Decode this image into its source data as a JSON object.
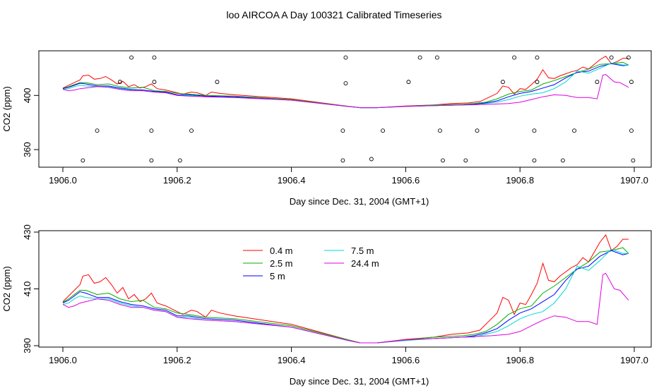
{
  "page_title": "loo AIRCOA A  Day 100321  Calibrated Timeseries",
  "chart_data": [
    {
      "type": "line",
      "panel": "top",
      "xlabel": "Day since Dec. 31, 2004 (GMT+1)",
      "ylabel": "CO2 (ppm)",
      "xlim": [
        1905.99,
        1907.01
      ],
      "ylim": [
        347,
        433
      ],
      "xticks": [
        1906.0,
        1906.2,
        1906.4,
        1906.6,
        1906.8,
        1907.0
      ],
      "xtick_labels": [
        "1906.0",
        "1906.2",
        "1906.4",
        "1906.6",
        "1906.8",
        "1907.0"
      ],
      "yticks": [
        360,
        400
      ],
      "ytick_labels": [
        "360",
        "400"
      ],
      "grid": false,
      "legend": false,
      "outlier_points": [
        [
          1906.035,
          352
        ],
        [
          1906.06,
          374
        ],
        [
          1906.12,
          428
        ],
        [
          1906.16,
          428
        ],
        [
          1906.1,
          410
        ],
        [
          1906.155,
          374
        ],
        [
          1906.155,
          352
        ],
        [
          1906.16,
          410
        ],
        [
          1906.205,
          352
        ],
        [
          1906.225,
          374
        ],
        [
          1906.27,
          410
        ],
        [
          1906.49,
          374
        ],
        [
          1906.49,
          352
        ],
        [
          1906.495,
          428
        ],
        [
          1906.495,
          409
        ],
        [
          1906.54,
          353
        ],
        [
          1906.56,
          374
        ],
        [
          1906.605,
          410
        ],
        [
          1906.625,
          428
        ],
        [
          1906.655,
          428
        ],
        [
          1906.66,
          374
        ],
        [
          1906.665,
          352
        ],
        [
          1906.705,
          352
        ],
        [
          1906.725,
          374
        ],
        [
          1906.77,
          410
        ],
        [
          1906.79,
          428
        ],
        [
          1906.825,
          374
        ],
        [
          1906.825,
          352
        ],
        [
          1906.83,
          410
        ],
        [
          1906.83,
          428
        ],
        [
          1906.875,
          352
        ],
        [
          1906.895,
          374
        ],
        [
          1906.935,
          410
        ],
        [
          1906.96,
          428
        ],
        [
          1906.99,
          428
        ],
        [
          1906.995,
          410
        ],
        [
          1906.995,
          374
        ],
        [
          1906.998,
          352
        ]
      ]
    },
    {
      "type": "line",
      "panel": "bottom",
      "xlabel": "Day since Dec. 31, 2004 (GMT+1)",
      "ylabel": "CO2 (ppm)",
      "xlim": [
        1905.99,
        1907.01
      ],
      "ylim": [
        389.5,
        430.5
      ],
      "xticks": [
        1906.0,
        1906.2,
        1906.4,
        1906.6,
        1906.8,
        1907.0
      ],
      "xtick_labels": [
        "1906.0",
        "1906.2",
        "1906.4",
        "1906.6",
        "1906.8",
        "1907.0"
      ],
      "yticks": [
        390,
        410,
        430
      ],
      "ytick_labels": [
        "390",
        "410",
        "430"
      ],
      "grid": false,
      "legend": "top-left",
      "series": [
        {
          "name": "0.4 m",
          "color": "#ff0000",
          "points": [
            [
              1906.0,
              405.5
            ],
            [
              1906.01,
              407.5
            ],
            [
              1906.02,
              409.5
            ],
            [
              1906.03,
              411.5
            ],
            [
              1906.035,
              414.5
            ],
            [
              1906.045,
              415.0
            ],
            [
              1906.055,
              412.0
            ],
            [
              1906.065,
              412.5
            ],
            [
              1906.075,
              414.0
            ],
            [
              1906.085,
              411.5
            ],
            [
              1906.095,
              408.5
            ],
            [
              1906.105,
              410.5
            ],
            [
              1906.115,
              406.5
            ],
            [
              1906.125,
              408.0
            ],
            [
              1906.135,
              405.5
            ],
            [
              1906.145,
              406.5
            ],
            [
              1906.155,
              408.5
            ],
            [
              1906.165,
              405.0
            ],
            [
              1906.18,
              404.0
            ],
            [
              1906.195,
              402.5
            ],
            [
              1906.21,
              401.0
            ],
            [
              1906.225,
              402.5
            ],
            [
              1906.235,
              402.0
            ],
            [
              1906.25,
              400.0
            ],
            [
              1906.26,
              402.5
            ],
            [
              1906.275,
              401.5
            ],
            [
              1906.3,
              400.5
            ],
            [
              1906.4,
              397.5
            ],
            [
              1906.5,
              392.0
            ],
            [
              1906.52,
              391.0
            ],
            [
              1906.55,
              391.0
            ],
            [
              1906.6,
              392.2
            ],
            [
              1906.65,
              393.0
            ],
            [
              1906.68,
              394.0
            ],
            [
              1906.71,
              394.5
            ],
            [
              1906.73,
              395.5
            ],
            [
              1906.745,
              398.5
            ],
            [
              1906.76,
              401.5
            ],
            [
              1906.77,
              407.0
            ],
            [
              1906.78,
              406.0
            ],
            [
              1906.79,
              401.0
            ],
            [
              1906.8,
              405.0
            ],
            [
              1906.81,
              404.5
            ],
            [
              1906.82,
              408.0
            ],
            [
              1906.83,
              412.0
            ],
            [
              1906.84,
              419.0
            ],
            [
              1906.85,
              413.0
            ],
            [
              1906.86,
              412.5
            ],
            [
              1906.87,
              414.5
            ],
            [
              1906.88,
              416.0
            ],
            [
              1906.89,
              417.5
            ],
            [
              1906.9,
              418.5
            ],
            [
              1906.91,
              421.0
            ],
            [
              1906.92,
              419.5
            ],
            [
              1906.93,
              423.0
            ],
            [
              1906.94,
              426.5
            ],
            [
              1906.95,
              429.0
            ],
            [
              1906.96,
              423.5
            ],
            [
              1906.97,
              425.0
            ],
            [
              1906.98,
              427.5
            ],
            [
              1906.99,
              427.5
            ]
          ]
        },
        {
          "name": "2.5 m",
          "color": "#00b000",
          "points": [
            [
              1906.0,
              405.2
            ],
            [
              1906.01,
              406.5
            ],
            [
              1906.02,
              408.0
            ],
            [
              1906.03,
              409.5
            ],
            [
              1906.04,
              409.5
            ],
            [
              1906.06,
              408.0
            ],
            [
              1906.08,
              408.5
            ],
            [
              1906.1,
              406.5
            ],
            [
              1906.12,
              405.5
            ],
            [
              1906.14,
              406.0
            ],
            [
              1906.16,
              403.5
            ],
            [
              1906.18,
              403.0
            ],
            [
              1906.2,
              401.5
            ],
            [
              1906.22,
              401.0
            ],
            [
              1906.25,
              400.0
            ],
            [
              1906.3,
              399.5
            ],
            [
              1906.4,
              397.0
            ],
            [
              1906.5,
              392.0
            ],
            [
              1906.52,
              391.0
            ],
            [
              1906.55,
              391.0
            ],
            [
              1906.6,
              392.0
            ],
            [
              1906.65,
              393.0
            ],
            [
              1906.7,
              393.5
            ],
            [
              1906.72,
              394.0
            ],
            [
              1906.74,
              395.0
            ],
            [
              1906.76,
              397.5
            ],
            [
              1906.78,
              401.0
            ],
            [
              1906.8,
              403.0
            ],
            [
              1906.82,
              404.0
            ],
            [
              1906.84,
              408.5
            ],
            [
              1906.86,
              411.0
            ],
            [
              1906.88,
              414.0
            ],
            [
              1906.9,
              417.0
            ],
            [
              1906.92,
              419.5
            ],
            [
              1906.94,
              423.0
            ],
            [
              1906.96,
              423.5
            ],
            [
              1906.98,
              424.5
            ],
            [
              1906.99,
              422.5
            ]
          ]
        },
        {
          "name": "5 m",
          "color": "#0000ff",
          "points": [
            [
              1906.0,
              405.0
            ],
            [
              1906.01,
              406.0
            ],
            [
              1906.02,
              407.5
            ],
            [
              1906.03,
              409.0
            ],
            [
              1906.04,
              408.5
            ],
            [
              1906.06,
              407.0
            ],
            [
              1906.08,
              407.0
            ],
            [
              1906.1,
              405.5
            ],
            [
              1906.12,
              404.5
            ],
            [
              1906.14,
              404.0
            ],
            [
              1906.16,
              403.0
            ],
            [
              1906.18,
              402.5
            ],
            [
              1906.2,
              400.5
            ],
            [
              1906.22,
              400.5
            ],
            [
              1906.25,
              399.5
            ],
            [
              1906.3,
              399.0
            ],
            [
              1906.4,
              396.5
            ],
            [
              1906.5,
              391.8
            ],
            [
              1906.52,
              391.0
            ],
            [
              1906.55,
              391.0
            ],
            [
              1906.6,
              392.0
            ],
            [
              1906.65,
              392.5
            ],
            [
              1906.7,
              393.0
            ],
            [
              1906.72,
              393.5
            ],
            [
              1906.74,
              394.5
            ],
            [
              1906.76,
              396.0
            ],
            [
              1906.78,
              399.0
            ],
            [
              1906.8,
              401.5
            ],
            [
              1906.82,
              403.0
            ],
            [
              1906.84,
              405.5
            ],
            [
              1906.86,
              408.0
            ],
            [
              1906.88,
              413.0
            ],
            [
              1906.9,
              417.0
            ],
            [
              1906.92,
              418.0
            ],
            [
              1906.94,
              421.5
            ],
            [
              1906.96,
              423.5
            ],
            [
              1906.98,
              422.0
            ],
            [
              1906.99,
              422.5
            ]
          ]
        },
        {
          "name": "7.5 m",
          "color": "#00d8d8",
          "points": [
            [
              1906.0,
              404.5
            ],
            [
              1906.01,
              405.0
            ],
            [
              1906.02,
              406.5
            ],
            [
              1906.03,
              407.5
            ],
            [
              1906.04,
              407.0
            ],
            [
              1906.06,
              406.5
            ],
            [
              1906.08,
              406.5
            ],
            [
              1906.1,
              405.0
            ],
            [
              1906.12,
              404.0
            ],
            [
              1906.14,
              403.5
            ],
            [
              1906.16,
              402.5
            ],
            [
              1906.18,
              402.0
            ],
            [
              1906.2,
              400.0
            ],
            [
              1906.22,
              400.0
            ],
            [
              1906.25,
              399.0
            ],
            [
              1906.3,
              398.5
            ],
            [
              1906.4,
              396.5
            ],
            [
              1906.5,
              391.8
            ],
            [
              1906.52,
              391.0
            ],
            [
              1906.55,
              391.0
            ],
            [
              1906.6,
              391.8
            ],
            [
              1906.65,
              392.5
            ],
            [
              1906.7,
              393.0
            ],
            [
              1906.72,
              393.0
            ],
            [
              1906.74,
              394.0
            ],
            [
              1906.76,
              395.0
            ],
            [
              1906.78,
              397.0
            ],
            [
              1906.8,
              399.5
            ],
            [
              1906.82,
              401.0
            ],
            [
              1906.84,
              402.0
            ],
            [
              1906.86,
              405.0
            ],
            [
              1906.88,
              410.0
            ],
            [
              1906.9,
              418.0
            ],
            [
              1906.92,
              416.5
            ],
            [
              1906.94,
              420.0
            ],
            [
              1906.96,
              424.0
            ],
            [
              1906.98,
              422.5
            ],
            [
              1906.99,
              422.5
            ]
          ]
        },
        {
          "name": "24.4 m",
          "color": "#e000e0",
          "points": [
            [
              1906.0,
              404.5
            ],
            [
              1906.01,
              403.5
            ],
            [
              1906.02,
              404.0
            ],
            [
              1906.03,
              405.0
            ],
            [
              1906.04,
              405.5
            ],
            [
              1906.06,
              406.5
            ],
            [
              1906.08,
              406.0
            ],
            [
              1906.1,
              404.5
            ],
            [
              1906.12,
              403.5
            ],
            [
              1906.14,
              403.5
            ],
            [
              1906.16,
              402.5
            ],
            [
              1906.18,
              402.0
            ],
            [
              1906.2,
              400.0
            ],
            [
              1906.22,
              399.5
            ],
            [
              1906.25,
              399.0
            ],
            [
              1906.3,
              398.5
            ],
            [
              1906.4,
              396.5
            ],
            [
              1906.5,
              391.8
            ],
            [
              1906.52,
              391.0
            ],
            [
              1906.55,
              391.0
            ],
            [
              1906.6,
              392.0
            ],
            [
              1906.65,
              392.5
            ],
            [
              1906.7,
              393.0
            ],
            [
              1906.75,
              393.5
            ],
            [
              1906.78,
              394.0
            ],
            [
              1906.8,
              395.0
            ],
            [
              1906.82,
              397.0
            ],
            [
              1906.84,
              399.0
            ],
            [
              1906.86,
              400.5
            ],
            [
              1906.88,
              400.0
            ],
            [
              1906.9,
              398.5
            ],
            [
              1906.92,
              398.5
            ],
            [
              1906.935,
              397.5
            ],
            [
              1906.945,
              415.0
            ],
            [
              1906.95,
              415.5
            ],
            [
              1906.965,
              410.0
            ],
            [
              1906.975,
              409.5
            ],
            [
              1906.99,
              406.0
            ]
          ]
        }
      ]
    }
  ]
}
